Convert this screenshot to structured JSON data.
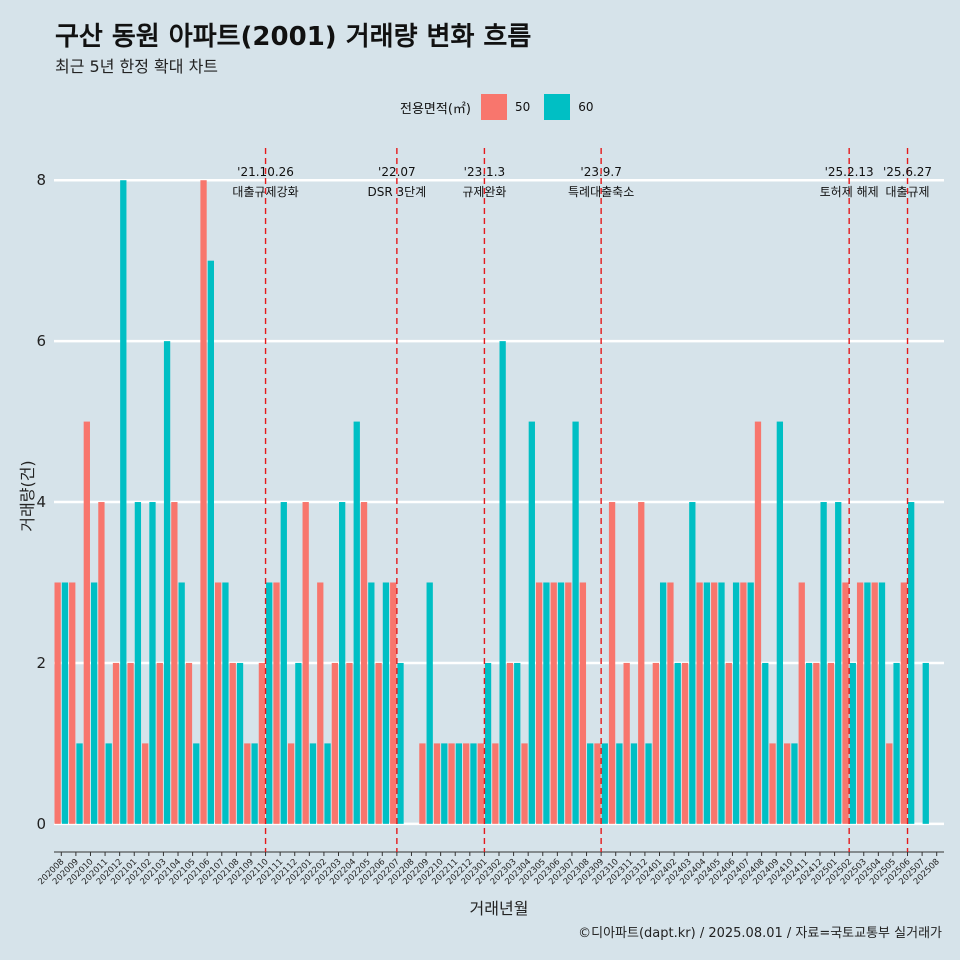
{
  "chart_data": {
    "type": "bar",
    "title": "구산 동원 아파트(2001) 거래량 변화 흐름",
    "subtitle": "최근 5년 한정 확대 차트",
    "xlabel": "거래년월",
    "ylabel": "거래량(건)",
    "legend_title": "전용면적(㎡)",
    "caption": "©디아파트(dapt.kr) / 2025.08.01 / 자료=국토교통부 실거래가",
    "ylim": [
      -0.35,
      8.5
    ],
    "yticks": [
      0,
      2,
      4,
      6,
      8
    ],
    "categories": [
      "202008",
      "202009",
      "202010",
      "202011",
      "202012",
      "202101",
      "202102",
      "202103",
      "202104",
      "202105",
      "202106",
      "202107",
      "202108",
      "202109",
      "202110",
      "202111",
      "202112",
      "202201",
      "202202",
      "202203",
      "202204",
      "202205",
      "202206",
      "202207",
      "202208",
      "202209",
      "202210",
      "202211",
      "202212",
      "202301",
      "202302",
      "202303",
      "202304",
      "202305",
      "202306",
      "202307",
      "202308",
      "202309",
      "202310",
      "202311",
      "202312",
      "202401",
      "202402",
      "202403",
      "202404",
      "202405",
      "202406",
      "202407",
      "202408",
      "202409",
      "202410",
      "202411",
      "202412",
      "202501",
      "202502",
      "202503",
      "202504",
      "202505",
      "202506",
      "202507",
      "202508"
    ],
    "series": [
      {
        "name": "50",
        "color": "#f8766d",
        "values": [
          3,
          3,
          5,
          4,
          2,
          2,
          1,
          2,
          4,
          2,
          8,
          3,
          2,
          1,
          2,
          3,
          1,
          4,
          3,
          2,
          2,
          4,
          2,
          3,
          null,
          1,
          1,
          1,
          1,
          1,
          1,
          2,
          1,
          3,
          3,
          3,
          3,
          1,
          4,
          2,
          4,
          2,
          3,
          2,
          3,
          3,
          2,
          3,
          5,
          1,
          1,
          3,
          2,
          2,
          3,
          3,
          3,
          1,
          3,
          null,
          null
        ]
      },
      {
        "name": "60",
        "color": "#00bfc4",
        "values": [
          3,
          1,
          3,
          1,
          8,
          4,
          4,
          6,
          3,
          1,
          7,
          3,
          2,
          1,
          3,
          4,
          2,
          1,
          1,
          4,
          5,
          3,
          3,
          2,
          null,
          3,
          1,
          1,
          1,
          2,
          6,
          2,
          5,
          3,
          3,
          5,
          1,
          1,
          1,
          1,
          1,
          3,
          2,
          4,
          3,
          3,
          3,
          3,
          2,
          5,
          1,
          2,
          4,
          4,
          2,
          3,
          3,
          2,
          4,
          2,
          null
        ]
      }
    ],
    "annotations": [
      {
        "date": "'21.10.26",
        "label": "대출규제강화",
        "at": "202110"
      },
      {
        "date": "'22.07",
        "label": "DSR 3단계",
        "at": "202207"
      },
      {
        "date": "'23.1.3",
        "label": "규제완화",
        "at": "202301"
      },
      {
        "date": "'23.9.7",
        "label": "특례대출축소",
        "at": "202309"
      },
      {
        "date": "'25.2.13",
        "label": "토허제 해제",
        "at": "202502"
      },
      {
        "date": "'25.6.27",
        "label": "대출규제",
        "at": "202506"
      }
    ],
    "annotation_color": "#e41a1c",
    "gridlines": true
  }
}
